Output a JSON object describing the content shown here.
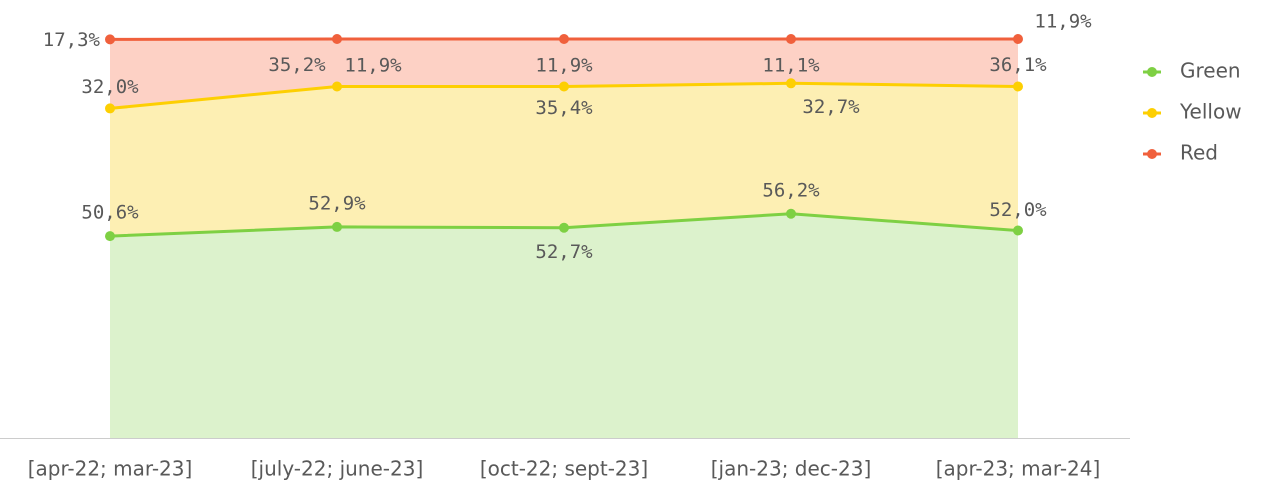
{
  "chart_data": {
    "type": "stacked_area",
    "categories": [
      "[apr-22; mar-23]",
      "[july-22; june-23]",
      "[oct-22; sept-23]",
      "[jan-23; dec-23]",
      "[apr-23; mar-24]"
    ],
    "series": [
      {
        "name": "Green",
        "color": "#7ed043",
        "fill": "#dcf2cc",
        "values": [
          50.6,
          52.9,
          52.7,
          56.2,
          52.0
        ],
        "value_labels": [
          "50,6%",
          "52,9%",
          "52,7%",
          "56,2%",
          "52,0%"
        ]
      },
      {
        "name": "Yellow",
        "color": "#fdcf02",
        "fill": "#fdefb3",
        "values": [
          32.0,
          35.2,
          35.4,
          32.7,
          36.1
        ],
        "value_labels": [
          "32,0%",
          "35,2%",
          "35,4%",
          "32,7%",
          "36,1%"
        ]
      },
      {
        "name": "Red",
        "color": "#f0603c",
        "fill": "#fdd1c5",
        "values": [
          17.3,
          11.9,
          11.9,
          11.1,
          11.9
        ],
        "value_labels": [
          "17,3%",
          "11,9%",
          "11,9%",
          "11,1%",
          "11,9%"
        ]
      }
    ],
    "ylim": [
      0,
      100
    ],
    "legend": "right"
  }
}
